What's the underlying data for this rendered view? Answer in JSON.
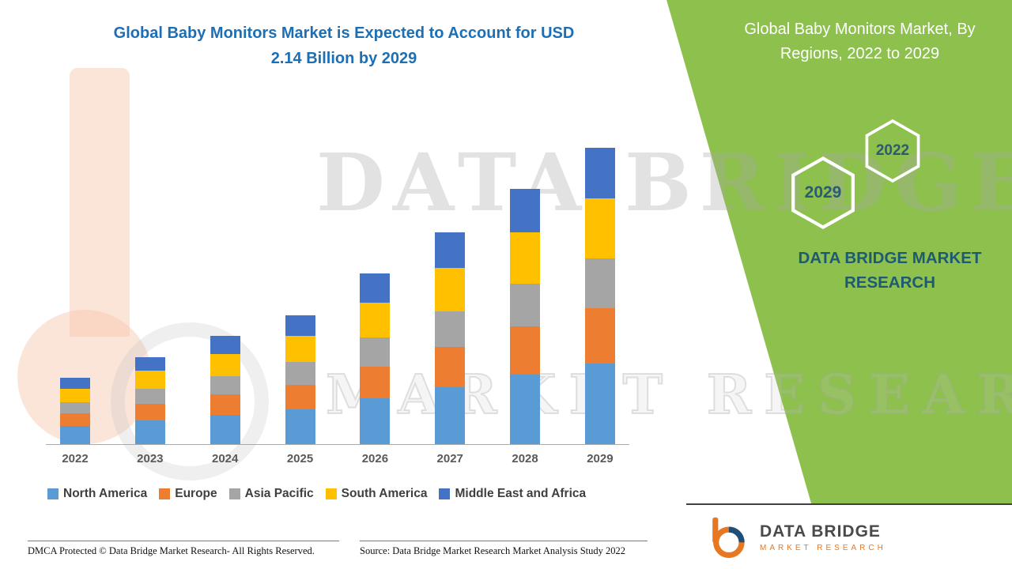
{
  "page": {
    "title_line1": "Global Baby Monitors Market is Expected to Account for USD",
    "title_line2": "2.14 Billion by 2029"
  },
  "side_panel": {
    "heading": "Global Baby Monitors Market, By Regions, 2022 to 2029",
    "hex_front": "2029",
    "hex_back": "2022",
    "brand": "DATA BRIDGE MARKET RESEARCH"
  },
  "watermark": {
    "line1": "DATA BRIDGE",
    "line2": "MARKET RESEARCH"
  },
  "logo": {
    "name": "DATA BRIDGE",
    "subtitle": "MARKET RESEARCH"
  },
  "footer": {
    "dmca": "DMCA Protected © Data Bridge Market Research- All Rights Reserved.",
    "source": "Source: Data Bridge Market Research Market Analysis Study 2022"
  },
  "colors": {
    "panel_green": "#8dc04d",
    "title_blue": "#1d6fb5",
    "brand_teal": "#1e5b70",
    "logo_orange": "#e87722"
  },
  "chart_data": {
    "type": "bar",
    "stacked": true,
    "title": "Global Baby Monitors Market is Expected to Account for USD 2.14 Billion by 2029",
    "categories": [
      "2022",
      "2023",
      "2024",
      "2025",
      "2026",
      "2027",
      "2028",
      "2029"
    ],
    "series": [
      {
        "name": "North America",
        "color": "#5B9BD5",
        "values": [
          0.13,
          0.17,
          0.21,
          0.25,
          0.33,
          0.41,
          0.5,
          0.58
        ]
      },
      {
        "name": "Europe",
        "color": "#ED7D31",
        "values": [
          0.09,
          0.12,
          0.15,
          0.18,
          0.23,
          0.29,
          0.35,
          0.4
        ]
      },
      {
        "name": "Asia Pacific",
        "color": "#A5A5A5",
        "values": [
          0.08,
          0.11,
          0.13,
          0.16,
          0.21,
          0.26,
          0.31,
          0.36
        ]
      },
      {
        "name": "South America",
        "color": "#FFC000",
        "values": [
          0.1,
          0.13,
          0.16,
          0.19,
          0.25,
          0.31,
          0.37,
          0.43
        ]
      },
      {
        "name": "Middle East and Africa",
        "color": "#4472C4",
        "values": [
          0.08,
          0.1,
          0.13,
          0.15,
          0.21,
          0.26,
          0.31,
          0.37
        ]
      }
    ],
    "totals": [
      0.48,
      0.63,
      0.78,
      0.93,
      1.23,
      1.53,
      1.84,
      2.14
    ],
    "ylim": [
      0,
      2.2
    ],
    "xlabel": "",
    "ylabel": "",
    "grid": false,
    "axis_visible": false,
    "legend_position": "bottom"
  }
}
